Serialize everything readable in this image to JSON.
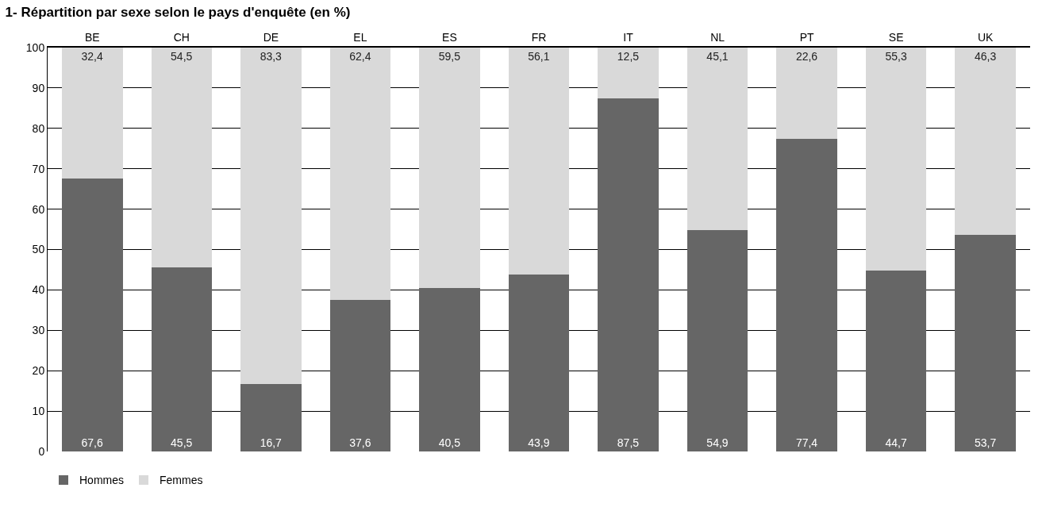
{
  "chart_data": {
    "type": "bar",
    "title": "1- Répartition par sexe selon le pays d'enquête (en %)",
    "stacked": true,
    "categories": [
      "BE",
      "CH",
      "DE",
      "EL",
      "ES",
      "FR",
      "IT",
      "NL",
      "PT",
      "SE",
      "UK"
    ],
    "series": [
      {
        "name": "Hommes",
        "color": "#666666",
        "values": [
          67.6,
          45.5,
          16.7,
          37.6,
          40.5,
          43.9,
          87.5,
          54.9,
          77.4,
          44.7,
          53.7
        ],
        "value_labels": [
          "67,6",
          "45,5",
          "16,7",
          "37,6",
          "40,5",
          "43,9",
          "87,5",
          "54,9",
          "77,4",
          "44,7",
          "53,7"
        ]
      },
      {
        "name": "Femmes",
        "color": "#d9d9d9",
        "values": [
          32.4,
          54.5,
          83.3,
          62.4,
          59.5,
          56.1,
          12.5,
          45.1,
          22.6,
          55.3,
          46.3
        ],
        "value_labels": [
          "32,4",
          "54,5",
          "83,3",
          "62,4",
          "59,5",
          "56,1",
          "12,5",
          "45,1",
          "22,6",
          "55,3",
          "46,3"
        ]
      }
    ],
    "ylim": [
      0,
      100
    ],
    "yticks": [
      0,
      10,
      20,
      30,
      40,
      50,
      60,
      70,
      80,
      90,
      100
    ],
    "grid": "y",
    "legend": "bottom"
  }
}
